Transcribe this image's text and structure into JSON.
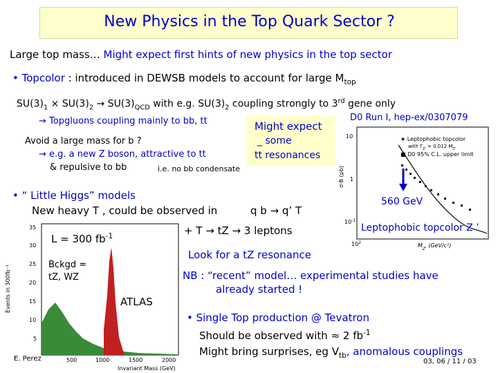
{
  "slide": {
    "title": "New Physics in the Top Quark Sector ?",
    "intro_black": "Large top mass… ",
    "intro_blue": "Might expect first hints of new physics in the top sector",
    "topcolor_bullet": "• ",
    "topcolor_label": "Topcolor",
    "topcolor_text": " : introduced in DEWSB models to account for large M",
    "topcolor_sub": "top",
    "su3_line": "SU(3)",
    "su3_sub1": "1",
    "su3_times": " × SU(3)",
    "su3_sub2": "2",
    "su3_arrow": " → SU(3)",
    "su3_sub3": "QCD",
    "su3_rest": " with e.g. SU(3)",
    "su3_sub4": "2",
    "su3_rest2": " coupling strongly to 3",
    "su3_sup": "rd",
    "su3_rest3": " gene only",
    "d0_ref": "D0 Run I, hep-ex/0307079",
    "topgluons": "→ Topgluons coupling mainly to bb, tt",
    "might_expect": "Might expect",
    "some": "some",
    "tt_resonances": "tt resonances",
    "avoid_mass": "Avoid a large mass for b ?",
    "new_z": "→ e.g. a new Z boson, attractive to tt",
    "repulsive": "& repulsive to bb",
    "no_condensate": "i.e. no bb condensate",
    "little_higgs": "• “ Little Higgs” models",
    "heavy_t": "New heavy T , could be observed in",
    "qb_qprime": "q b → q’ T",
    "t_to_tz": "+  T → tZ → 3 leptons",
    "luminosity": "L = 300 fb",
    "lumi_sup": "-1",
    "bckgd": "Bckgd =",
    "bckgd2": "tZ, WZ",
    "atlas": "ATLAS",
    "look_for": "Look for a tZ resonance",
    "nb_line1": "NB : “recent” model… experimental studies have",
    "nb_line2": "already started !",
    "mass_560": "560 GeV",
    "leptophobic": "Leptophobic topcolor Z ’",
    "single_top": "• Single Top production @ Tevatron",
    "observed_with": "Should be observed with ≈ 2 fb",
    "observed_sup": "-1",
    "surprises": "Might bring surprises, eg V",
    "surprises_sub": "tb",
    "anomalous": ", anomalous couplings",
    "author": "E. Perez",
    "footer_date": "03, 06 / 11 / 03",
    "d0_plot": {
      "ylabel": "σ·B (pb)",
      "xlabel": "M",
      "xlabel_sub": "Z'",
      "xlabel_unit": " (GeV/c²)",
      "legend1": "★ Leptophobic topcolor",
      "legend1b": "with Γ",
      "legend1b_sub": "Z'",
      "legend1b_rest": " = 0.012 M",
      "legend1b_sub2": "Z'",
      "legend2": "■ D0 95% C.L. upper limit",
      "yticks": [
        "10",
        "1",
        "10"
      ],
      "ytick_sup": "-1",
      "xtick_left": "10",
      "xtick_left_sup": "2"
    },
    "atlas_plot": {
      "ylabel": "Events in 300fb⁻¹",
      "xlabel": "Invariant Mass (GeV)",
      "yticks": [
        "35",
        "30",
        "25",
        "20",
        "15",
        "10",
        "5"
      ],
      "xticks": [
        "500",
        "1000",
        "1500",
        "2000"
      ]
    }
  }
}
